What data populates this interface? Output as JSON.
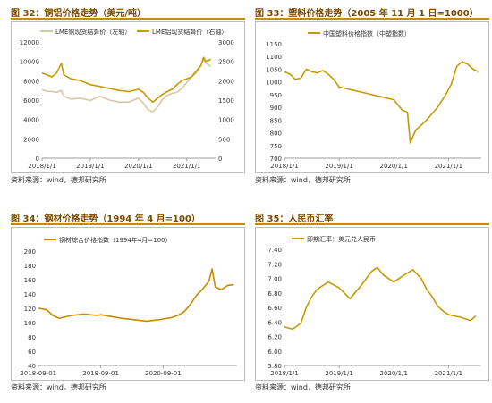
{
  "colors": {
    "gold": "#c79a00",
    "tan": "#d8c8a6",
    "title": "#7a4a00",
    "frame": "#bdbdbd"
  },
  "panels": [
    {
      "title": "图 32：铜铝价格走势（美元/吨）",
      "source": "资料来源：wind，德邦研究所"
    },
    {
      "title": "图 33：塑料价格走势（2005 年 11 月 1 日=1000）",
      "source": "资料来源：wind，德邦研究所"
    },
    {
      "title": "图 34：钢材价格走势（1994 年 4 月=100）",
      "source": "资料来源：wind，德邦研究所"
    },
    {
      "title": "图 35：人民币汇率",
      "source": "资料来源：wind，德邦研究所"
    }
  ],
  "chart_data": [
    {
      "type": "line",
      "title": "",
      "x_ticks": [
        "2018/1/1",
        "2019/1/1",
        "2020/1/1",
        "2021/1/1"
      ],
      "y_ticks": [
        0,
        2000,
        4000,
        6000,
        8000,
        10000,
        12000
      ],
      "y2_ticks": [
        0,
        500,
        1000,
        1500,
        2000,
        2500,
        3000
      ],
      "ylim": [
        0,
        12000
      ],
      "y2lim": [
        0,
        3000
      ],
      "legend_position": "top",
      "x": [
        2018.0,
        2018.1,
        2018.2,
        2018.3,
        2018.4,
        2018.45,
        2018.6,
        2018.8,
        2019.0,
        2019.2,
        2019.4,
        2019.6,
        2019.8,
        2020.0,
        2020.1,
        2020.2,
        2020.3,
        2020.4,
        2020.5,
        2020.6,
        2020.7,
        2020.8,
        2020.9,
        2021.0,
        2021.1,
        2021.2,
        2021.3,
        2021.35,
        2021.4,
        2021.5
      ],
      "series": [
        {
          "name": "LME铜现货结算价（左轴）",
          "axis": "left",
          "color": "#d8c8a6",
          "values": [
            7100,
            6900,
            6900,
            6800,
            7000,
            6400,
            6100,
            6200,
            5950,
            6400,
            6000,
            5800,
            5800,
            6200,
            5700,
            5000,
            4800,
            5300,
            6100,
            6500,
            6700,
            6800,
            7200,
            7800,
            8400,
            8800,
            9600,
            10200,
            9800,
            9500
          ]
        },
        {
          "name": "LME铝现货结算价（右轴）",
          "axis": "right",
          "color": "#c79a00",
          "values": [
            2200,
            2150,
            2100,
            2200,
            2450,
            2150,
            2050,
            2000,
            1900,
            1850,
            1800,
            1750,
            1720,
            1780,
            1700,
            1550,
            1450,
            1550,
            1650,
            1720,
            1780,
            1900,
            2000,
            2050,
            2100,
            2250,
            2400,
            2600,
            2500,
            2550
          ]
        }
      ]
    },
    {
      "type": "line",
      "title": "",
      "x_ticks": [
        "2018/1/1",
        "2019/1/1",
        "2020/1/1",
        "2021/1/1"
      ],
      "y_ticks": [
        700,
        750,
        800,
        850,
        900,
        950,
        1000,
        1050,
        1100,
        1150
      ],
      "ylim": [
        700,
        1150
      ],
      "legend_position": "top",
      "x": [
        2018.0,
        2018.1,
        2018.2,
        2018.3,
        2018.4,
        2018.5,
        2018.6,
        2018.7,
        2018.8,
        2018.9,
        2019.0,
        2019.2,
        2019.4,
        2019.6,
        2019.8,
        2020.0,
        2020.15,
        2020.25,
        2020.3,
        2020.4,
        2020.6,
        2020.8,
        2020.95,
        2021.05,
        2021.15,
        2021.25,
        2021.35,
        2021.45,
        2021.55
      ],
      "series": [
        {
          "name": "中国塑料价格指数（中塑指数）",
          "color": "#c79a00",
          "values": [
            1040,
            1030,
            1010,
            1015,
            1050,
            1040,
            1035,
            1045,
            1030,
            1010,
            980,
            970,
            960,
            950,
            940,
            930,
            890,
            880,
            760,
            810,
            850,
            900,
            950,
            990,
            1060,
            1080,
            1070,
            1050,
            1040
          ]
        }
      ]
    },
    {
      "type": "line",
      "title": "",
      "x_ticks": [
        "2018-09-01",
        "2019-09-01",
        "2020-09-01"
      ],
      "y_ticks": [
        40,
        60,
        80,
        100,
        120,
        140,
        160,
        180,
        200
      ],
      "ylim": [
        40,
        200
      ],
      "legend_position": "top",
      "x": [
        2018.67,
        2018.8,
        2018.9,
        2019.0,
        2019.1,
        2019.2,
        2019.4,
        2019.6,
        2019.67,
        2019.8,
        2020.0,
        2020.2,
        2020.4,
        2020.6,
        2020.67,
        2020.8,
        2020.9,
        2021.0,
        2021.1,
        2021.2,
        2021.3,
        2021.4,
        2021.45,
        2021.5,
        2021.6,
        2021.7,
        2021.8
      ],
      "series": [
        {
          "name": "钢材综合价格指数（1994年4月=100）",
          "color": "#c78a00",
          "values": [
            120,
            118,
            110,
            106,
            108,
            110,
            112,
            110,
            111,
            109,
            106,
            104,
            102,
            104,
            105,
            107,
            110,
            115,
            125,
            138,
            147,
            158,
            175,
            150,
            146,
            152,
            153
          ]
        }
      ]
    },
    {
      "type": "line",
      "title": "",
      "x_ticks": [
        "2018/1/1",
        "2019/1/1",
        "2020/1/1",
        "2021/1/1"
      ],
      "y_ticks": [
        5.8,
        6.0,
        6.2,
        6.4,
        6.6,
        6.8,
        7.0,
        7.2,
        7.4
      ],
      "ylim": [
        5.8,
        7.4
      ],
      "legend_position": "top",
      "x": [
        2018.0,
        2018.15,
        2018.3,
        2018.4,
        2018.5,
        2018.6,
        2018.8,
        2019.0,
        2019.2,
        2019.4,
        2019.6,
        2019.7,
        2019.8,
        2020.0,
        2020.2,
        2020.35,
        2020.5,
        2020.6,
        2020.7,
        2020.8,
        2020.9,
        2021.0,
        2021.2,
        2021.4,
        2021.5
      ],
      "series": [
        {
          "name": "即期汇率：美元兑人民币",
          "color": "#c79a00",
          "values": [
            6.33,
            6.3,
            6.38,
            6.6,
            6.75,
            6.85,
            6.95,
            6.87,
            6.72,
            6.9,
            7.1,
            7.15,
            7.05,
            6.95,
            7.05,
            7.12,
            7.0,
            6.85,
            6.75,
            6.62,
            6.55,
            6.5,
            6.47,
            6.42,
            6.48
          ]
        }
      ]
    }
  ]
}
